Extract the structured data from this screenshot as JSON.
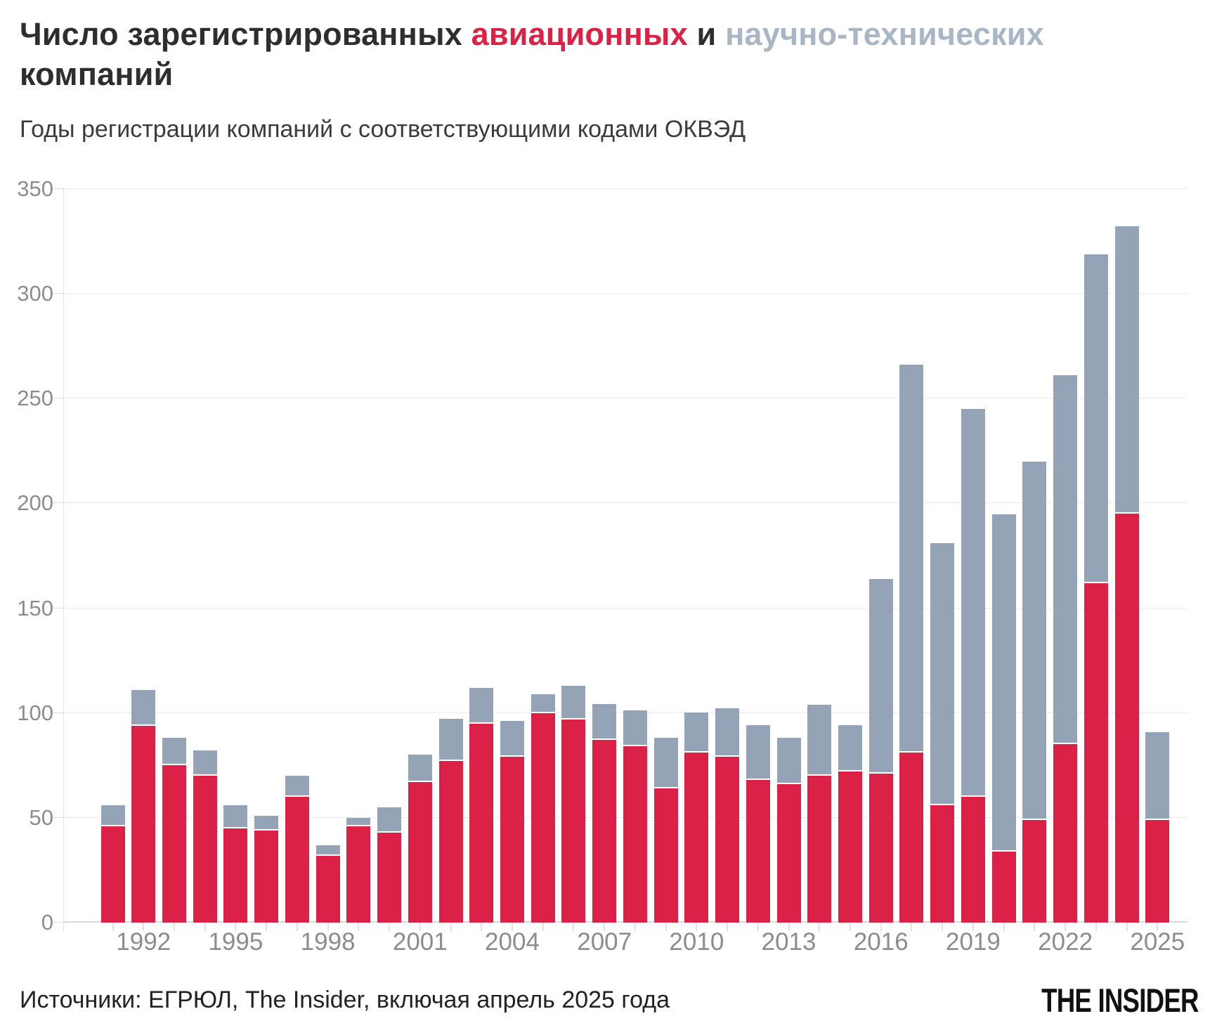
{
  "title": {
    "part1": "Число зарегистрированных ",
    "accent_red": "авиационных",
    "part2": " и ",
    "accent_gray": "научно-технических",
    "part3": "компаний"
  },
  "subtitle": "Годы регистрации компаний с соответствующими кодами ОКВЭД",
  "source": "Источники: ЕГРЮЛ, The Insider, включая апрель 2025 года",
  "logo": "THE INSIDER",
  "colors": {
    "aviation": "#db2146",
    "scitech": "#95a3b7",
    "title_red": "#db2146",
    "title_gray": "#a9b6c6",
    "axis_text": "#8c8c8c",
    "gridline": "#ebebeb",
    "baseline": "#dadada"
  },
  "chart_data": {
    "type": "bar",
    "stacked": true,
    "title": "Число зарегистрированных авиационных и научно-технических компаний",
    "subtitle": "Годы регистрации компаний с соответствующими кодами ОКВЭД",
    "xlabel": "",
    "ylabel": "",
    "ylim": [
      0,
      350
    ],
    "yticks": [
      0,
      50,
      100,
      150,
      200,
      250,
      300,
      350
    ],
    "grid": true,
    "legend_position": "none (series colors referenced in title)",
    "x": [
      1991,
      1992,
      1993,
      1994,
      1995,
      1996,
      1997,
      1998,
      1999,
      2000,
      2001,
      2002,
      2003,
      2004,
      2005,
      2006,
      2007,
      2008,
      2009,
      2010,
      2011,
      2012,
      2013,
      2014,
      2015,
      2016,
      2017,
      2018,
      2019,
      2020,
      2021,
      2022,
      2023,
      2024,
      2025
    ],
    "xtick_labels": [
      1992,
      1995,
      1998,
      2001,
      2004,
      2007,
      2010,
      2013,
      2016,
      2019,
      2022,
      2025
    ],
    "series": [
      {
        "name": "авиационные",
        "color": "#db2146",
        "values": [
          46,
          94,
          75,
          70,
          45,
          44,
          60,
          32,
          46,
          43,
          67,
          77,
          95,
          79,
          100,
          97,
          87,
          84,
          64,
          81,
          79,
          68,
          66,
          70,
          72,
          71,
          81,
          56,
          60,
          34,
          49,
          85,
          162,
          195,
          49
        ]
      },
      {
        "name": "научно-технические",
        "color": "#95a3b7",
        "values": [
          10,
          17,
          13,
          12,
          11,
          7,
          10,
          5,
          4,
          12,
          13,
          20,
          17,
          17,
          9,
          16,
          17,
          17,
          24,
          19,
          23,
          26,
          22,
          34,
          22,
          93,
          185,
          125,
          185,
          161,
          171,
          176,
          157,
          137,
          42
        ]
      }
    ],
    "totals": [
      56,
      111,
      88,
      82,
      56,
      51,
      70,
      37,
      50,
      55,
      80,
      97,
      112,
      96,
      109,
      113,
      104,
      101,
      88,
      100,
      102,
      94,
      88,
      104,
      94,
      164,
      266,
      181,
      245,
      195,
      220,
      261,
      319,
      332,
      91
    ]
  }
}
